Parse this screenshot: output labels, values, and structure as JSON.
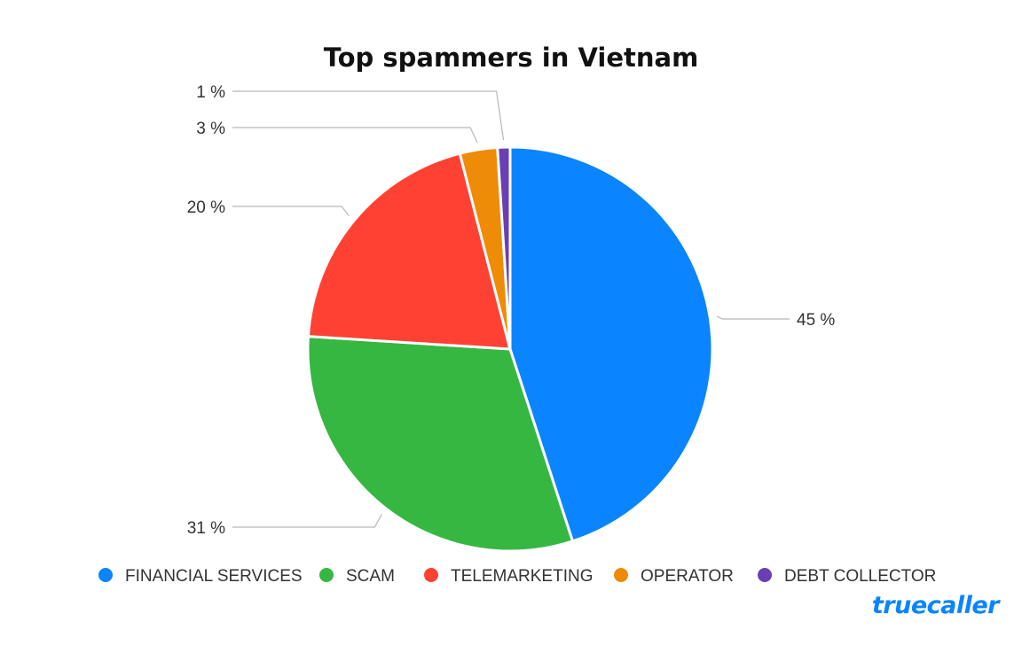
{
  "chart_data": {
    "type": "pie",
    "title": "Top spammers in Vietnam",
    "slices": [
      {
        "label": "FINANCIAL SERVICES",
        "value": 45,
        "display": "45 %",
        "color": "#0a84ff"
      },
      {
        "label": "SCAM",
        "value": 31,
        "display": "31 %",
        "color": "#36b742"
      },
      {
        "label": "TELEMARKETING",
        "value": 20,
        "display": "20 %",
        "color": "#ff4133"
      },
      {
        "label": "OPERATOR",
        "value": 3,
        "display": "3 %",
        "color": "#ee8b07"
      },
      {
        "label": "DEBT COLLECTOR",
        "value": 1,
        "display": "1 %",
        "color": "#6a3fb5"
      }
    ],
    "legend_position": "bottom"
  },
  "brand": {
    "name": "truecaller",
    "color": "#0a84ff"
  }
}
